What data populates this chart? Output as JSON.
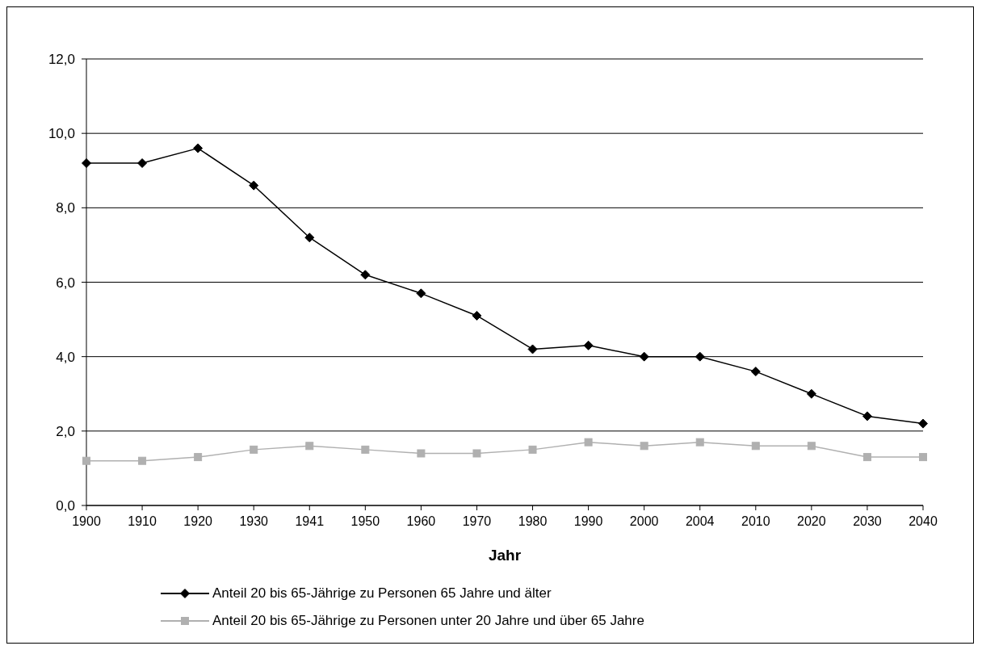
{
  "chart_data": {
    "type": "line",
    "xlabel": "Jahr",
    "categories": [
      "1900",
      "1910",
      "1920",
      "1930",
      "1941",
      "1950",
      "1960",
      "1970",
      "1980",
      "1990",
      "2000",
      "2004",
      "2010",
      "2020",
      "2030",
      "2040"
    ],
    "series": [
      {
        "name": "Anteil 20 bis 65-Jährige zu Personen 65 Jahre und älter",
        "color": "#000000",
        "marker": "diamond",
        "values": [
          9.2,
          9.2,
          9.6,
          8.6,
          7.2,
          6.2,
          5.7,
          5.1,
          4.2,
          4.3,
          4.0,
          4.0,
          3.6,
          3.0,
          2.4,
          2.2
        ]
      },
      {
        "name": "Anteil 20 bis 65-Jährige zu Personen unter 20 Jahre und über 65 Jahre",
        "color": "#b0b0b0",
        "marker": "square",
        "values": [
          1.2,
          1.2,
          1.3,
          1.5,
          1.6,
          1.5,
          1.4,
          1.4,
          1.5,
          1.7,
          1.6,
          1.7,
          1.6,
          1.6,
          1.3,
          1.3
        ]
      }
    ],
    "ylim": [
      0,
      12
    ],
    "yticks": [
      {
        "value": 0,
        "label": "0,0"
      },
      {
        "value": 2,
        "label": "2,0"
      },
      {
        "value": 4,
        "label": "4,0"
      },
      {
        "value": 6,
        "label": "6,0"
      },
      {
        "value": 8,
        "label": "8,0"
      },
      {
        "value": 10,
        "label": "10,0"
      },
      {
        "value": 12,
        "label": "12,0"
      }
    ],
    "grid": "y",
    "legend": "bottom",
    "line_style": "solid"
  }
}
